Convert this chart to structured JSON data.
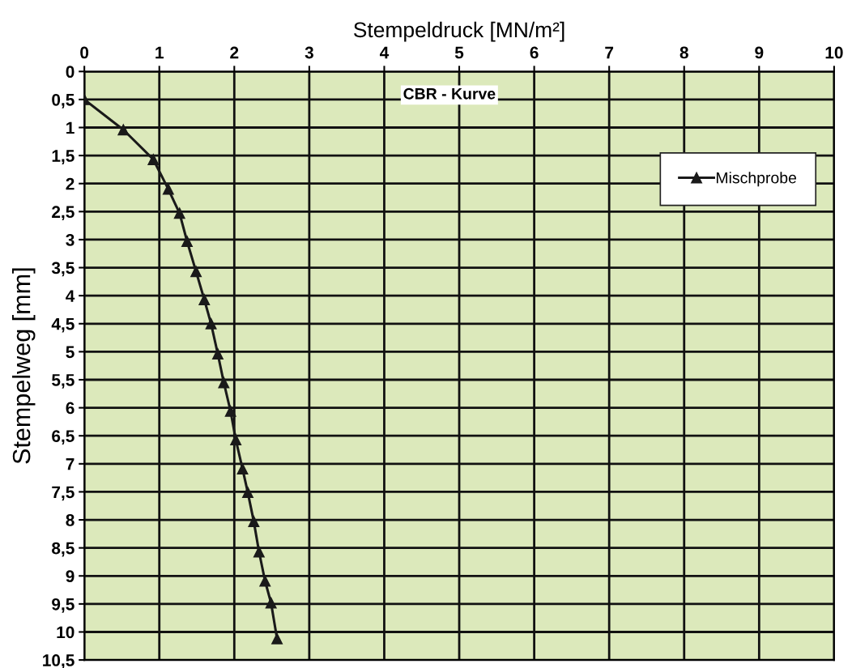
{
  "chart_data": {
    "type": "line",
    "title": "CBR - Kurve",
    "xlabel": "Stempeldruck [MN/m²]",
    "ylabel": "Stempelweg [mm]",
    "x": [
      0,
      0.52,
      0.92,
      1.12,
      1.27,
      1.37,
      1.49,
      1.6,
      1.69,
      1.78,
      1.86,
      1.95,
      2.02,
      2.11,
      2.18,
      2.26,
      2.33,
      2.41,
      2.49,
      2.57
    ],
    "series": [
      {
        "name": "Mischprobe",
        "color": "#1a1a1a",
        "values": [
          0.5,
          1.04,
          1.57,
          2.1,
          2.53,
          3.03,
          3.57,
          4.07,
          4.5,
          5.04,
          5.55,
          6.06,
          6.57,
          7.09,
          7.51,
          8.03,
          8.57,
          9.09,
          9.48,
          10.12
        ]
      }
    ],
    "xlim": [
      0,
      10
    ],
    "xticks": [
      0,
      1,
      2,
      3,
      4,
      5,
      6,
      7,
      8,
      9,
      10
    ],
    "ylim": [
      10.5,
      0
    ],
    "yticks": [
      0,
      {
        "value": 0.5,
        "label": "0,5"
      },
      1,
      {
        "value": 1.5,
        "label": "1,5"
      },
      2,
      {
        "value": 2.5,
        "label": "2,5"
      },
      3,
      {
        "value": 3.5,
        "label": "3,5"
      },
      4,
      {
        "value": 4.5,
        "label": "4,5"
      },
      5,
      {
        "value": 5.5,
        "label": "5,5"
      },
      6,
      {
        "value": 6.5,
        "label": "6,5"
      },
      7,
      {
        "value": 7.5,
        "label": "7,5"
      },
      8,
      {
        "value": 8.5,
        "label": "8,5"
      },
      9,
      {
        "value": 9.5,
        "label": "9,5"
      },
      10,
      {
        "value": 10.5,
        "label": "10,5"
      }
    ],
    "grid": true,
    "legend": "top right",
    "marker": "triangle",
    "line_style": "solid"
  }
}
